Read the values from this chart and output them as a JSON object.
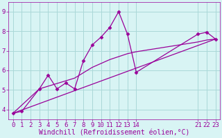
{
  "background_color": "#d8f4f4",
  "grid_color": "#aad8d8",
  "line_color": "#990099",
  "marker_color": "#990099",
  "xlabel": "Windchill (Refroidissement éolien,°C)",
  "xlim": [
    -0.5,
    23.5
  ],
  "ylim": [
    3.5,
    9.5
  ],
  "xticks": [
    0,
    1,
    2,
    3,
    4,
    5,
    6,
    7,
    8,
    9,
    10,
    11,
    12,
    13,
    14,
    21,
    22,
    23
  ],
  "yticks": [
    4,
    5,
    6,
    7,
    8,
    9
  ],
  "series1_x": [
    0,
    1,
    3,
    4,
    5,
    6,
    7,
    8,
    9,
    10,
    11,
    12,
    13,
    14,
    21,
    22,
    23
  ],
  "series1_y": [
    3.8,
    3.9,
    5.05,
    5.75,
    5.05,
    5.35,
    5.05,
    6.5,
    7.3,
    7.7,
    8.2,
    9.0,
    7.85,
    5.9,
    7.85,
    7.95,
    7.6
  ],
  "series2_x": [
    0,
    23
  ],
  "series2_y": [
    3.8,
    7.6
  ],
  "series3_x": [
    0,
    3,
    7,
    9,
    10,
    11,
    12,
    13,
    14,
    21,
    22,
    23
  ],
  "series3_y": [
    3.8,
    5.05,
    5.6,
    6.15,
    6.35,
    6.55,
    6.7,
    6.85,
    6.95,
    7.45,
    7.55,
    7.6
  ],
  "font_color": "#990099",
  "tick_fontsize": 6.5,
  "label_fontsize": 7.0
}
